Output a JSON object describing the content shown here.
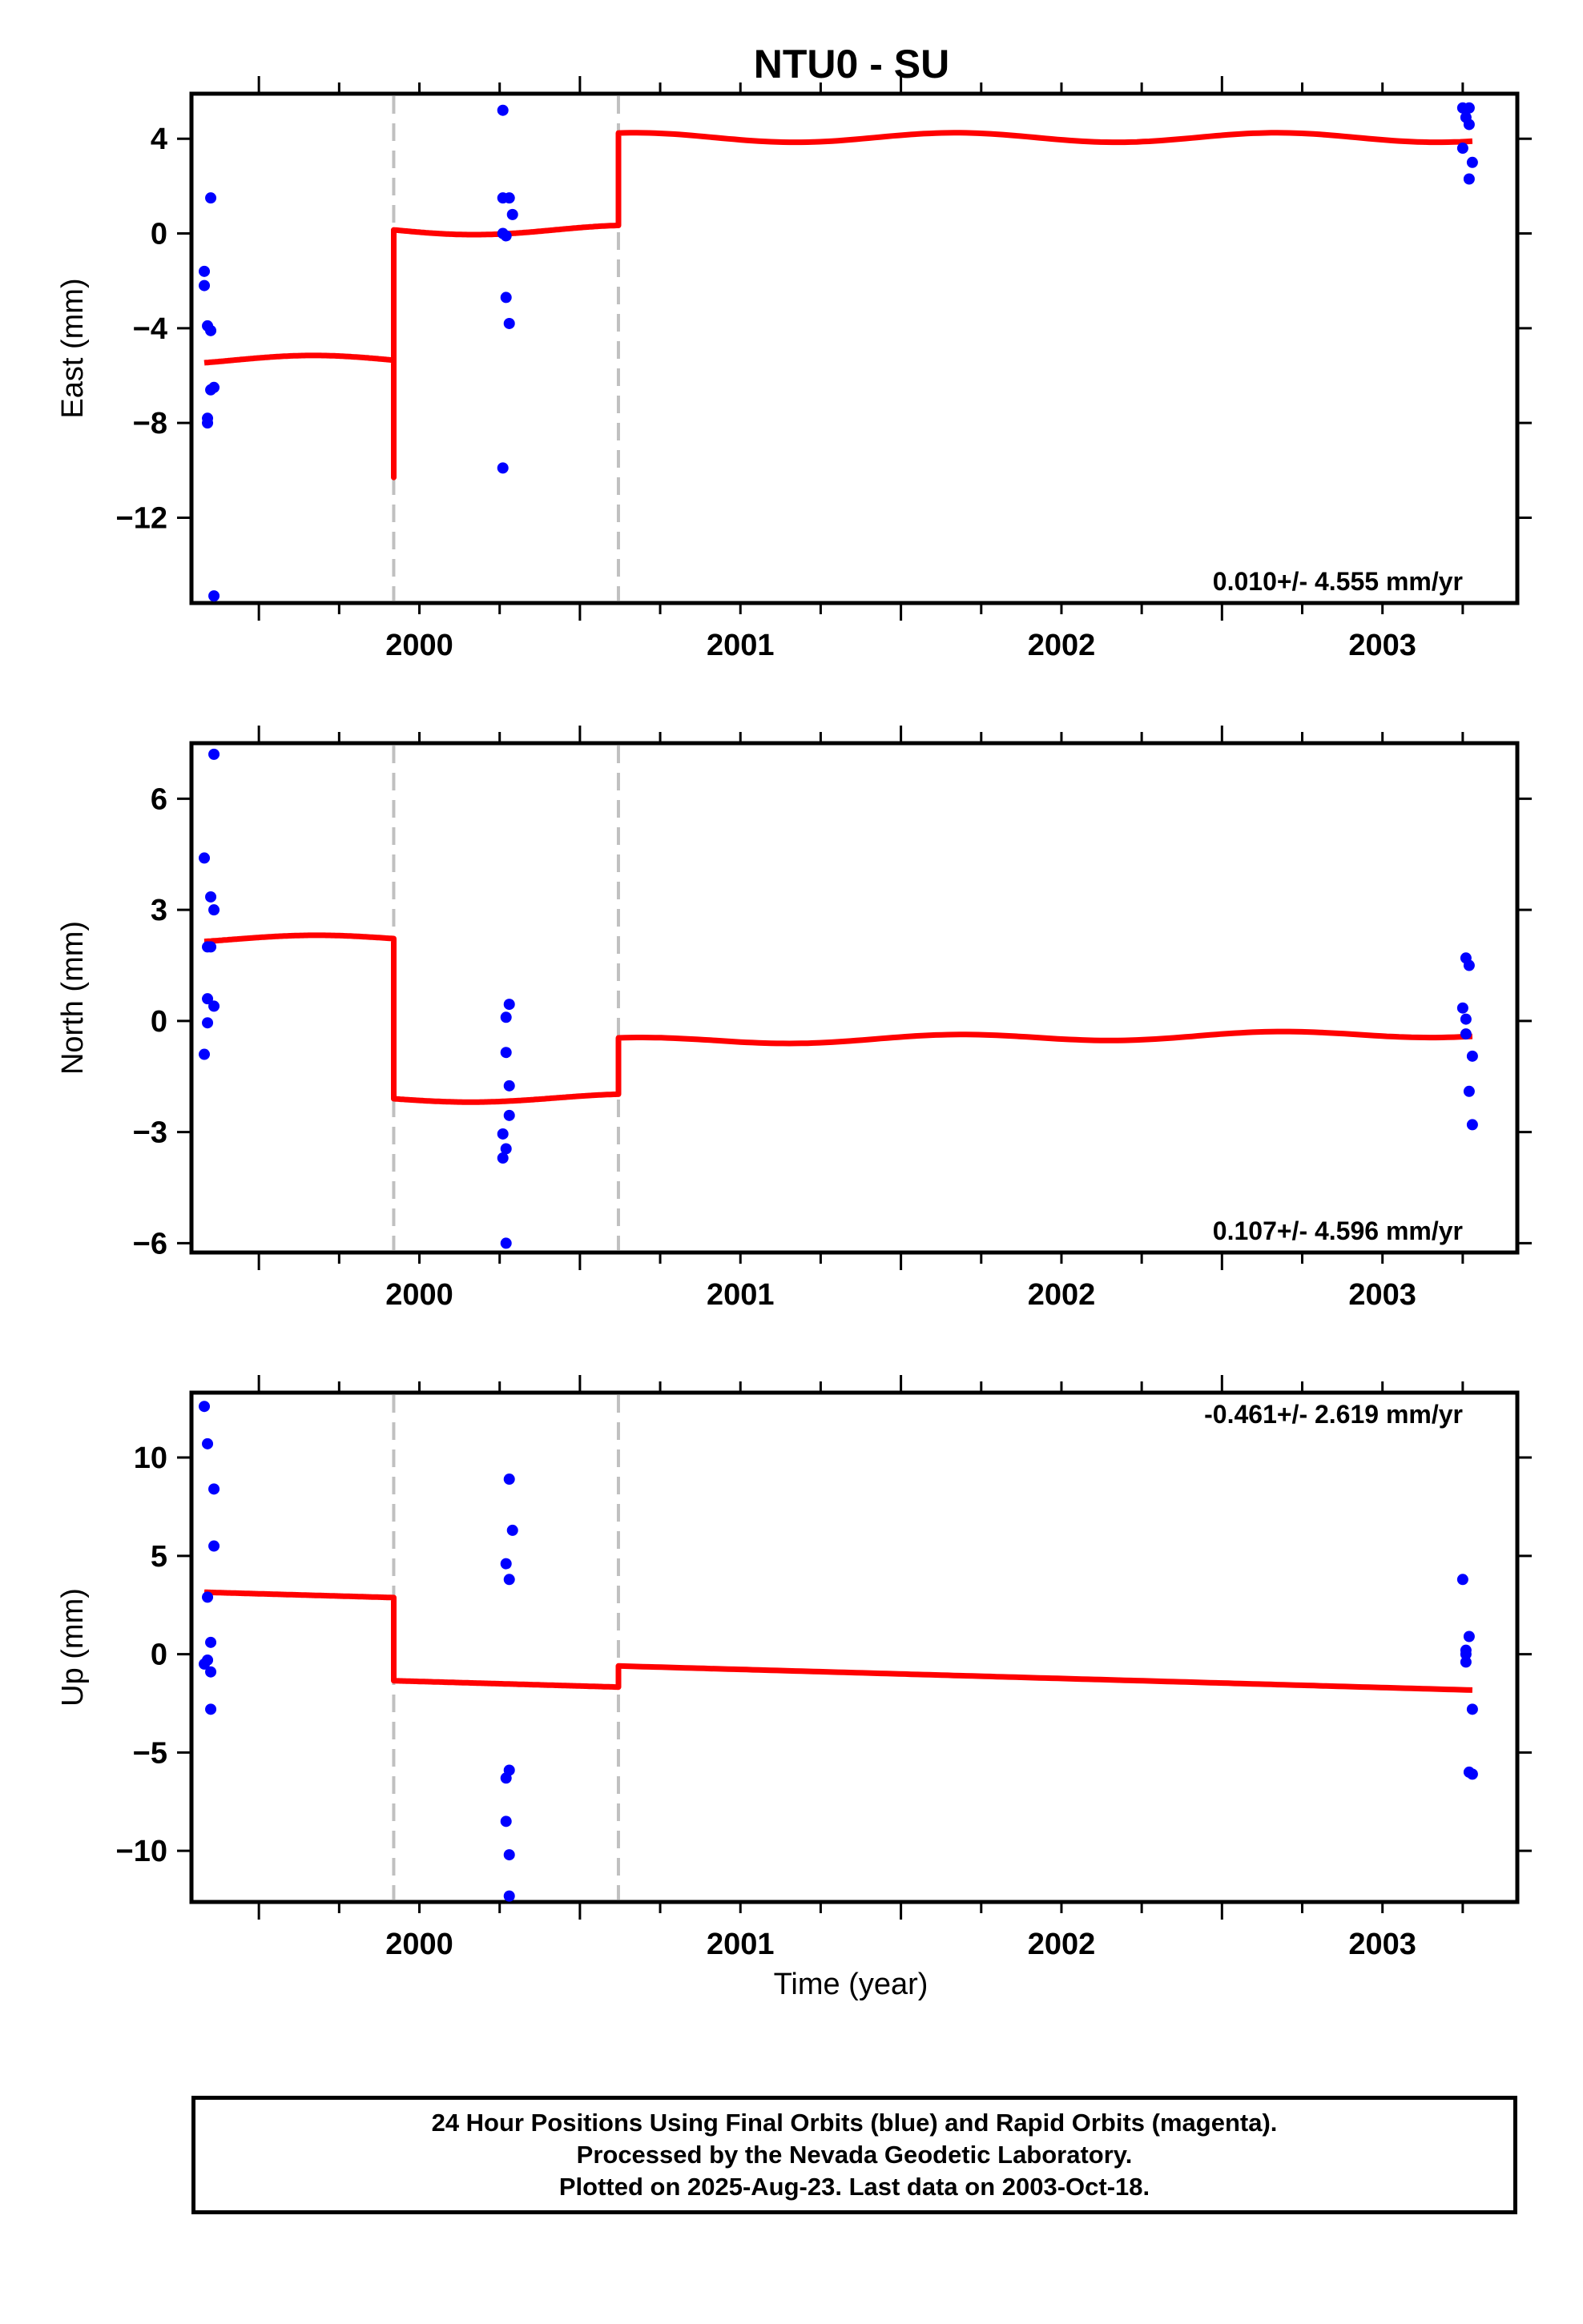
{
  "title": "NTU0 - SU",
  "xlabel": "Time (year)",
  "colors": {
    "model": "#ff0000",
    "final_orbits": "#0000ff",
    "offset_line": "#c0c0c0",
    "frame": "#000000"
  },
  "footer": {
    "line1": "24 Hour Positions Using Final Orbits (blue) and Rapid Orbits (magenta).",
    "line2": "Processed by the Nevada Geodetic Laboratory.",
    "line3": "Plotted on 2025-Aug-23. Last data on 2003-Oct-18."
  },
  "chart_data": [
    {
      "type": "scatter",
      "ylabel": "East (mm)",
      "rate_label": "0.010+/- 4.555 mm/yr",
      "xlim": [
        1999.79,
        2003.92
      ],
      "ylim": [
        -15.6,
        5.9
      ],
      "xticks": [
        2000,
        2001,
        2002,
        2003
      ],
      "yticks": [
        4,
        0,
        -4,
        -8,
        -12
      ],
      "ytick_labels": [
        "4",
        "0",
        "−4",
        "−8",
        "−12"
      ],
      "offsets": [
        2000.42,
        2001.12
      ],
      "points": [
        [
          1999.83,
          -1.6
        ],
        [
          1999.83,
          -2.2
        ],
        [
          1999.84,
          -3.9
        ],
        [
          1999.85,
          -4.1
        ],
        [
          1999.84,
          -7.8
        ],
        [
          1999.84,
          -8.0
        ],
        [
          1999.86,
          -6.5
        ],
        [
          1999.85,
          -6.6
        ],
        [
          1999.85,
          1.5
        ],
        [
          1999.86,
          -15.3
        ],
        [
          2000.76,
          5.2
        ],
        [
          2000.76,
          1.5
        ],
        [
          2000.78,
          1.5
        ],
        [
          2000.76,
          0.0
        ],
        [
          2000.77,
          -0.1
        ],
        [
          2000.79,
          0.8
        ],
        [
          2000.77,
          -2.7
        ],
        [
          2000.78,
          -3.8
        ],
        [
          2000.76,
          -9.9
        ],
        [
          2003.75,
          5.3
        ],
        [
          2003.77,
          5.3
        ],
        [
          2003.76,
          4.9
        ],
        [
          2003.77,
          4.6
        ],
        [
          2003.75,
          3.6
        ],
        [
          2003.78,
          3.0
        ],
        [
          2003.77,
          2.3
        ]
      ],
      "model": {
        "segments": [
          {
            "start": 1999.83,
            "end": 2000.42,
            "a": -5.35,
            "b": 0.0,
            "amp": 0.2,
            "phase": 0.5
          },
          {
            "start": 2000.42,
            "end": 2001.12,
            "a": 0.15,
            "b": 0.0,
            "amp": 0.2,
            "phase": 0.5
          },
          {
            "start": 2001.12,
            "end": 2003.78,
            "a": 4.05,
            "b": 0.0,
            "amp": 0.2,
            "phase": 0.5
          }
        ],
        "spikes": [
          [
            2000.42,
            -5.35,
            -10.3,
            0.15
          ]
        ]
      }
    },
    {
      "type": "scatter",
      "ylabel": "North (mm)",
      "rate_label": "0.107+/- 4.596 mm/yr",
      "xlim": [
        1999.79,
        2003.92
      ],
      "ylim": [
        -6.25,
        7.5
      ],
      "xticks": [
        2000,
        2001,
        2002,
        2003
      ],
      "yticks": [
        6,
        3,
        0,
        -3,
        -6
      ],
      "ytick_labels": [
        "6",
        "3",
        "0",
        "−3",
        "−6"
      ],
      "offsets": [
        2000.42,
        2001.12
      ],
      "points": [
        [
          1999.86,
          7.2
        ],
        [
          1999.83,
          4.4
        ],
        [
          1999.85,
          3.35
        ],
        [
          1999.86,
          3.0
        ],
        [
          1999.84,
          2.0
        ],
        [
          1999.85,
          2.0
        ],
        [
          1999.84,
          0.6
        ],
        [
          1999.86,
          0.4
        ],
        [
          1999.84,
          -0.05
        ],
        [
          1999.83,
          -0.9
        ],
        [
          2000.78,
          0.45
        ],
        [
          2000.77,
          0.1
        ],
        [
          2000.77,
          -0.85
        ],
        [
          2000.78,
          -1.75
        ],
        [
          2000.78,
          -2.55
        ],
        [
          2000.76,
          -3.05
        ],
        [
          2000.77,
          -3.45
        ],
        [
          2000.76,
          -3.7
        ],
        [
          2000.77,
          -6.0
        ],
        [
          2003.76,
          1.7
        ],
        [
          2003.77,
          1.5
        ],
        [
          2003.75,
          0.35
        ],
        [
          2003.76,
          0.05
        ],
        [
          2003.76,
          -0.35
        ],
        [
          2003.78,
          -0.95
        ],
        [
          2003.77,
          -1.9
        ],
        [
          2003.78,
          -2.8
        ]
      ],
      "model": {
        "segments": [
          {
            "start": 1999.83,
            "end": 2000.42,
            "a": 2.2,
            "b": 0.04,
            "amp": 0.1,
            "phase": 0.5
          },
          {
            "start": 2000.42,
            "end": 2001.12,
            "a": -2.1,
            "b": 0.04,
            "amp": 0.1,
            "phase": 0.5
          },
          {
            "start": 2001.12,
            "end": 2003.78,
            "a": -0.55,
            "b": 0.08,
            "amp": 0.1,
            "phase": 0.5
          }
        ],
        "spikes": []
      }
    },
    {
      "type": "scatter",
      "ylabel": "Up (mm)",
      "rate_label": "-0.461+/- 2.619 mm/yr",
      "xlim": [
        1999.79,
        2003.92
      ],
      "ylim": [
        -12.6,
        13.3
      ],
      "xticks": [
        2000,
        2001,
        2002,
        2003
      ],
      "yticks": [
        10,
        5,
        0,
        -5,
        -10
      ],
      "ytick_labels": [
        "10",
        "5",
        "0",
        "−5",
        "−10"
      ],
      "offsets": [
        2000.42,
        2001.12
      ],
      "points": [
        [
          1999.83,
          12.6
        ],
        [
          1999.84,
          10.7
        ],
        [
          1999.86,
          8.4
        ],
        [
          1999.86,
          5.5
        ],
        [
          1999.84,
          2.9
        ],
        [
          1999.85,
          0.6
        ],
        [
          1999.84,
          -0.3
        ],
        [
          1999.83,
          -0.5
        ],
        [
          1999.85,
          -0.9
        ],
        [
          1999.85,
          -2.8
        ],
        [
          2000.78,
          8.9
        ],
        [
          2000.79,
          6.3
        ],
        [
          2000.77,
          4.6
        ],
        [
          2000.78,
          3.8
        ],
        [
          2000.78,
          -5.9
        ],
        [
          2000.77,
          -6.3
        ],
        [
          2000.77,
          -8.5
        ],
        [
          2000.78,
          -10.2
        ],
        [
          2000.78,
          -12.3
        ],
        [
          2003.75,
          3.8
        ],
        [
          2003.77,
          0.9
        ],
        [
          2003.76,
          0.2
        ],
        [
          2003.76,
          0.0
        ],
        [
          2003.76,
          -0.4
        ],
        [
          2003.78,
          -2.8
        ],
        [
          2003.77,
          -6.0
        ],
        [
          2003.78,
          -6.1
        ]
      ],
      "model": {
        "segments": [
          {
            "start": 1999.83,
            "end": 2000.42,
            "a": 3.15,
            "b": -0.461,
            "amp": 0.0,
            "phase": 0.0
          },
          {
            "start": 2000.42,
            "end": 2001.12,
            "a": -1.35,
            "b": -0.461,
            "amp": 0.0,
            "phase": 0.0
          },
          {
            "start": 2001.12,
            "end": 2003.78,
            "a": -0.6,
            "b": -0.461,
            "amp": 0.0,
            "phase": 0.0
          }
        ],
        "spikes": []
      }
    }
  ]
}
